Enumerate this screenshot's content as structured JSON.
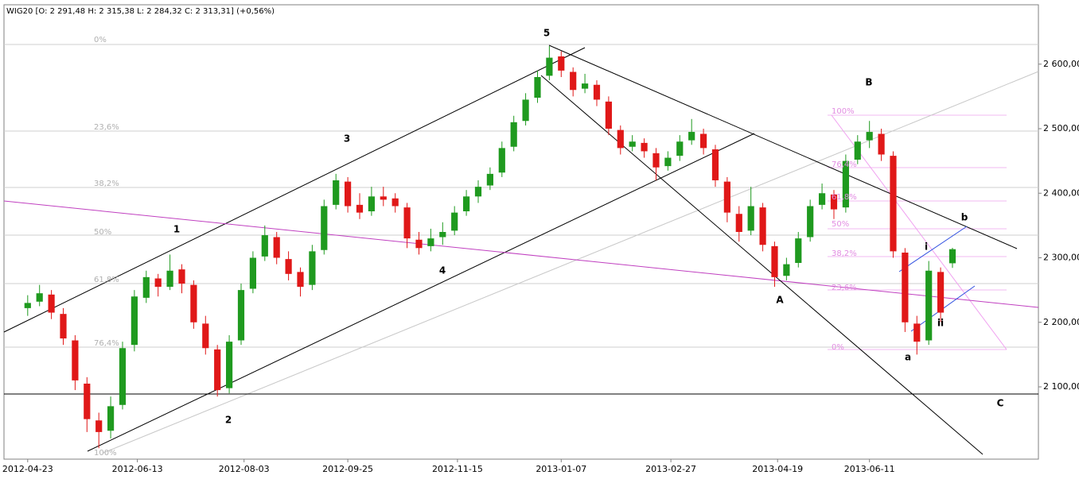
{
  "chart_data": {
    "type": "candlestick",
    "title": "WIG20 [O: 2 291,48  H: 2 315,38  L: 2 284,32  C: 2 313,31] (+0,56%)",
    "up_color": "#1f9a1f",
    "down_color": "#e01818",
    "x": [
      0,
      4,
      8,
      12,
      16,
      20,
      24,
      28,
      32,
      36,
      40,
      44,
      48,
      52,
      56,
      60,
      64,
      68,
      72,
      76,
      80,
      84,
      88,
      92,
      96,
      100,
      104,
      108,
      112,
      116,
      120,
      124,
      128,
      132,
      136,
      140,
      144,
      148,
      152,
      156,
      160,
      164,
      168,
      172,
      176,
      180,
      184,
      188,
      192,
      196,
      200,
      204,
      208,
      212,
      216,
      220,
      224,
      228,
      232,
      236,
      240,
      244,
      248,
      252,
      256,
      260,
      264,
      268,
      272,
      276,
      280,
      284,
      288,
      292,
      296,
      300,
      304,
      308,
      312
    ],
    "open": [
      2222,
      2232,
      2243,
      2213,
      2172,
      2105,
      2048,
      2032,
      2072,
      2165,
      2238,
      2268,
      2255,
      2282,
      2258,
      2198,
      2158,
      2098,
      2172,
      2252,
      2302,
      2332,
      2298,
      2278,
      2258,
      2312,
      2382,
      2418,
      2382,
      2372,
      2395,
      2392,
      2378,
      2328,
      2318,
      2332,
      2342,
      2372,
      2395,
      2412,
      2432,
      2472,
      2512,
      2548,
      2582,
      2612,
      2588,
      2562,
      2568,
      2542,
      2498,
      2472,
      2478,
      2462,
      2442,
      2458,
      2482,
      2492,
      2468,
      2418,
      2368,
      2342,
      2378,
      2318,
      2272,
      2292,
      2332,
      2382,
      2398,
      2378,
      2452,
      2482,
      2492,
      2458,
      2308,
      2198,
      2172,
      2278,
      2291.48
    ],
    "high": [
      2242,
      2258,
      2250,
      2222,
      2180,
      2115,
      2060,
      2085,
      2170,
      2250,
      2280,
      2275,
      2305,
      2290,
      2265,
      2210,
      2165,
      2180,
      2260,
      2310,
      2350,
      2340,
      2310,
      2285,
      2320,
      2390,
      2430,
      2425,
      2400,
      2410,
      2410,
      2400,
      2385,
      2340,
      2345,
      2355,
      2380,
      2405,
      2420,
      2440,
      2480,
      2520,
      2555,
      2590,
      2628,
      2620,
      2595,
      2585,
      2575,
      2550,
      2505,
      2490,
      2485,
      2470,
      2465,
      2490,
      2515,
      2500,
      2475,
      2425,
      2380,
      2410,
      2385,
      2325,
      2300,
      2340,
      2390,
      2415,
      2405,
      2460,
      2490,
      2512,
      2500,
      2465,
      2315,
      2210,
      2295,
      2285,
      2315.38
    ],
    "low": [
      2210,
      2225,
      2205,
      2165,
      2095,
      2030,
      2005,
      2020,
      2065,
      2155,
      2230,
      2240,
      2250,
      2245,
      2190,
      2150,
      2085,
      2090,
      2165,
      2245,
      2295,
      2290,
      2265,
      2240,
      2250,
      2305,
      2375,
      2370,
      2360,
      2365,
      2380,
      2370,
      2315,
      2305,
      2310,
      2320,
      2335,
      2365,
      2385,
      2405,
      2425,
      2465,
      2505,
      2540,
      2575,
      2580,
      2550,
      2555,
      2535,
      2490,
      2460,
      2465,
      2455,
      2420,
      2435,
      2450,
      2475,
      2460,
      2410,
      2355,
      2325,
      2335,
      2310,
      2255,
      2265,
      2285,
      2325,
      2375,
      2360,
      2370,
      2445,
      2470,
      2450,
      2300,
      2185,
      2150,
      2165,
      2200,
      2284.32
    ],
    "close": [
      2230,
      2245,
      2215,
      2175,
      2110,
      2050,
      2030,
      2070,
      2160,
      2240,
      2270,
      2255,
      2280,
      2260,
      2200,
      2160,
      2095,
      2170,
      2250,
      2300,
      2335,
      2300,
      2275,
      2255,
      2310,
      2380,
      2420,
      2380,
      2370,
      2395,
      2390,
      2380,
      2330,
      2315,
      2330,
      2340,
      2370,
      2395,
      2410,
      2430,
      2470,
      2510,
      2545,
      2580,
      2610,
      2590,
      2560,
      2570,
      2545,
      2500,
      2470,
      2480,
      2465,
      2440,
      2455,
      2480,
      2495,
      2470,
      2420,
      2370,
      2340,
      2380,
      2320,
      2270,
      2290,
      2330,
      2380,
      2400,
      2375,
      2450,
      2480,
      2495,
      2460,
      2310,
      2200,
      2170,
      2280,
      2215,
      2313.31
    ],
    "xlim": [
      -8,
      341
    ],
    "ylim": [
      1988,
      2692
    ],
    "xticks": [
      {
        "value": 0,
        "label": "2012-04-23"
      },
      {
        "value": 37,
        "label": "2012-06-13"
      },
      {
        "value": 73,
        "label": "2012-08-03"
      },
      {
        "value": 108,
        "label": "2012-09-25"
      },
      {
        "value": 145,
        "label": "2012-11-15"
      },
      {
        "value": 180,
        "label": "2013-01-07"
      },
      {
        "value": 217,
        "label": "2013-02-27"
      },
      {
        "value": 253,
        "label": "2013-04-19"
      },
      {
        "value": 284,
        "label": "2013-06-11"
      }
    ],
    "yticks": [
      {
        "value": 2100,
        "label": "2 100,00"
      },
      {
        "value": 2200,
        "label": "2 200,00"
      },
      {
        "value": 2300,
        "label": "2 300,00"
      },
      {
        "value": 2400,
        "label": "2 400,00"
      },
      {
        "value": 2500,
        "label": "2 500,00"
      },
      {
        "value": 2600,
        "label": "2 600,00"
      }
    ],
    "wave_labels": [
      "1",
      "2",
      "3",
      "4",
      "5",
      "A",
      "B",
      "C",
      "a",
      "b",
      "i",
      "ii"
    ],
    "fib_main_labels": [
      "0%",
      "23,6%",
      "38,2%",
      "50%",
      "61,8%",
      "76,4%",
      "100%"
    ],
    "fib_pink_labels": [
      "100%",
      "76,4%",
      "61,8%",
      "50%",
      "38,2%",
      "23,6%",
      "0%"
    ]
  }
}
